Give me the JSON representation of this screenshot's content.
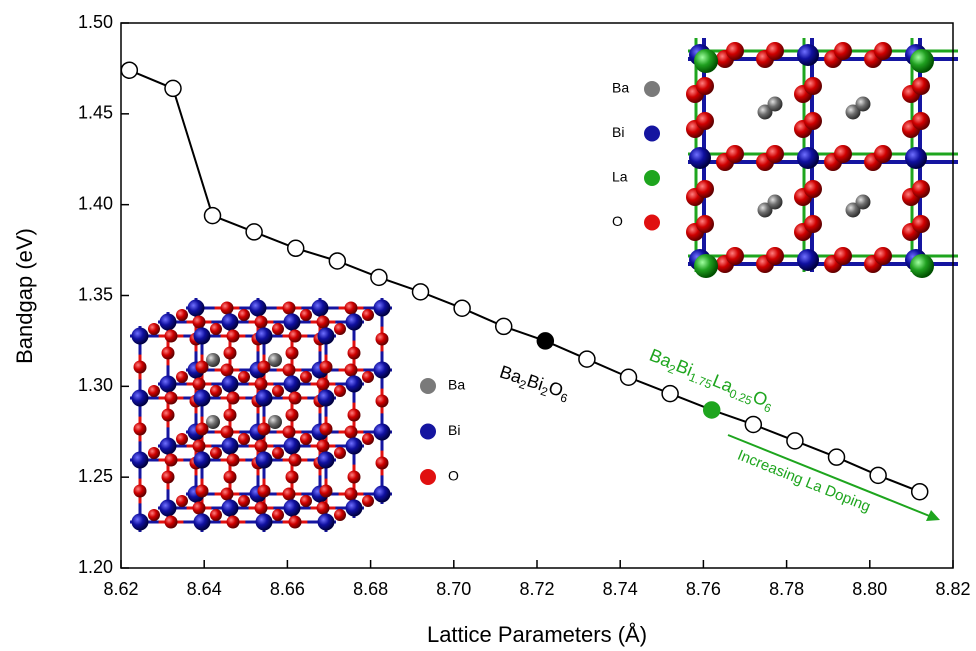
{
  "chart_data": {
    "type": "line",
    "x_label": "Lattice Parameters (Å)",
    "y_label": "Bandgap (eV)",
    "x": [
      8.622,
      8.6325,
      8.642,
      8.652,
      8.662,
      8.672,
      8.682,
      8.692,
      8.702,
      8.712,
      8.722,
      8.732,
      8.742,
      8.752,
      8.762,
      8.772,
      8.782,
      8.792,
      8.802,
      8.812
    ],
    "series": [
      {
        "color": "#000000",
        "values": [
          1.474,
          1.464,
          1.394,
          1.385,
          1.376,
          1.369,
          1.36,
          1.352,
          1.343,
          1.333,
          1.325,
          1.315,
          1.305,
          1.296,
          1.287,
          1.279,
          1.27,
          1.261,
          1.251,
          1.242
        ],
        "marker_colors": [
          "#ffffff",
          "#ffffff",
          "#ffffff",
          "#ffffff",
          "#ffffff",
          "#ffffff",
          "#ffffff",
          "#ffffff",
          "#ffffff",
          "#ffffff",
          "#000000",
          "#ffffff",
          "#ffffff",
          "#ffffff",
          "#1ea51e",
          "#ffffff",
          "#ffffff",
          "#ffffff",
          "#ffffff",
          "#ffffff"
        ]
      }
    ],
    "xlim": [
      8.62,
      8.82
    ],
    "ylim": [
      1.2,
      1.5
    ],
    "xticks": [
      8.62,
      8.64,
      8.66,
      8.68,
      {
        "value": 8.7,
        "label": "8.70"
      },
      8.72,
      8.74,
      8.76,
      8.78,
      {
        "value": 8.8,
        "label": "8.80"
      },
      8.82
    ],
    "yticks": [
      {
        "value": 1.2,
        "label": "1.20"
      },
      1.25,
      {
        "value": 1.3,
        "label": "1.30"
      },
      1.35,
      {
        "value": 1.4,
        "label": "1.40"
      },
      1.45,
      {
        "value": 1.5,
        "label": "1.50"
      }
    ],
    "annotations": [
      {
        "color": "#000000",
        "parts": [
          {
            "text": "Ba"
          },
          {
            "text": "2",
            "sub": true
          },
          {
            "text": "Bi"
          },
          {
            "text": "2",
            "sub": true
          },
          {
            "text": "O"
          },
          {
            "text": "6",
            "sub": true
          }
        ]
      },
      {
        "color": "#1ea51e",
        "parts": [
          {
            "text": "Ba"
          },
          {
            "text": "2",
            "sub": true
          },
          {
            "text": "Bi"
          },
          {
            "text": "1.75",
            "sub": true
          },
          {
            "text": "La"
          },
          {
            "text": "0.25",
            "sub": true
          },
          {
            "text": "O"
          },
          {
            "text": "6",
            "sub": true
          }
        ]
      },
      {
        "color": "#1ea51e",
        "parts": [
          {
            "text": "Increasing La Doping"
          }
        ]
      }
    ],
    "insets": [
      {
        "legend": [
          {
            "name": "Ba",
            "color": "#7a7a7a"
          },
          {
            "name": "Bi",
            "color": "#1515a0"
          },
          {
            "name": "O",
            "color": "#e01010"
          }
        ]
      },
      {
        "legend": [
          {
            "name": "Ba",
            "color": "#7a7a7a"
          },
          {
            "name": "Bi",
            "color": "#1515a0"
          },
          {
            "name": "La",
            "color": "#1ea51e"
          },
          {
            "name": "O",
            "color": "#e01010"
          }
        ]
      }
    ]
  }
}
